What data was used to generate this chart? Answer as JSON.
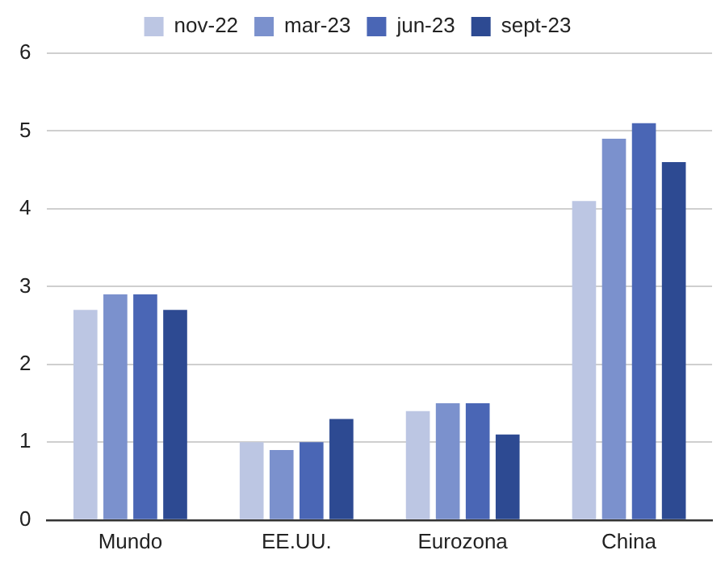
{
  "chart_data": {
    "type": "bar",
    "categories": [
      "Mundo",
      "EE.UU.",
      "Eurozona",
      "China"
    ],
    "series": [
      {
        "name": "nov-22",
        "color": "#bcc6e3",
        "values": [
          2.7,
          1.0,
          1.4,
          4.1
        ]
      },
      {
        "name": "mar-23",
        "color": "#7b91cd",
        "values": [
          2.9,
          0.9,
          1.5,
          4.9
        ]
      },
      {
        "name": "jun-23",
        "color": "#4a66b5",
        "values": [
          2.9,
          1.0,
          1.5,
          5.1
        ]
      },
      {
        "name": "sept-23",
        "color": "#2d4a92",
        "values": [
          2.7,
          1.3,
          1.1,
          4.6
        ]
      }
    ],
    "ylim": [
      0,
      6
    ],
    "yticks": [
      0,
      1,
      2,
      3,
      4,
      5,
      6
    ],
    "grid": "y",
    "legend": "top"
  }
}
